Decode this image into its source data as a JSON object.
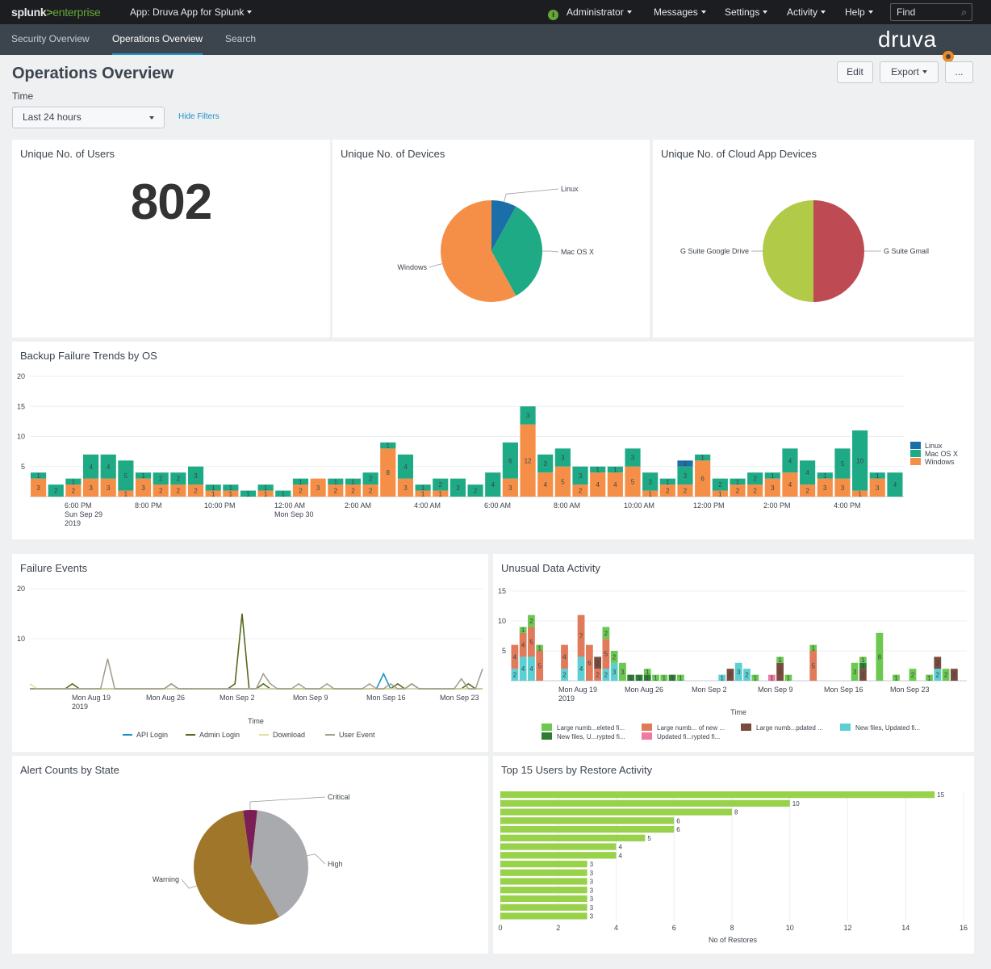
{
  "topbar": {
    "logo_main": "splunk",
    "logo_sep": ">",
    "logo_edition": "enterprise",
    "app_label": "App: Druva App for Splunk",
    "admin_label": "Administrator",
    "menus": [
      "Messages",
      "Settings",
      "Activity",
      "Help"
    ],
    "find_placeholder": "Find"
  },
  "nav": {
    "tabs": [
      "Security Overview",
      "Operations Overview",
      "Search"
    ],
    "active_tab": "Operations Overview",
    "brand": "druva"
  },
  "header": {
    "title": "Operations Overview",
    "edit_label": "Edit",
    "export_label": "Export",
    "more_label": "...",
    "time_label": "Time",
    "time_value": "Last 24 hours",
    "hide_filters": "Hide Filters"
  },
  "colors": {
    "windows": "#f58f47",
    "macos": "#1faa86",
    "linux": "#1b6fa8",
    "gsuite_drive": "#b1ca48",
    "gsuite_gmail": "#be4b54",
    "api_login": "#1e93c6",
    "admin_login": "#546a1c",
    "download": "#e6dea2",
    "user_event": "#a69f8e",
    "alert_warning": "#a0762a",
    "alert_high": "#a9aaad",
    "alert_critical": "#7a1f55",
    "restore_bar": "#98d14a"
  },
  "panels": {
    "users": {
      "title": "Unique No. of Users",
      "value": "802"
    },
    "devices": {
      "title": "Unique No. of Devices"
    },
    "cloud": {
      "title": "Unique No. of Cloud App Devices"
    },
    "backup": {
      "title": "Backup Failure Trends by OS"
    },
    "failures": {
      "title": "Failure Events"
    },
    "unusual": {
      "title": "Unusual Data Activity"
    },
    "alerts": {
      "title": "Alert Counts by State"
    },
    "top15": {
      "title": "Top 15 Users by Restore Activity"
    }
  },
  "chart_data": [
    {
      "id": "devices",
      "type": "pie",
      "labels": [
        "Linux",
        "Mac OS X",
        "Windows"
      ],
      "values": [
        8,
        34,
        58
      ]
    },
    {
      "id": "cloud",
      "type": "pie",
      "labels": [
        "G Suite Gmail",
        "G Suite Google Drive"
      ],
      "values": [
        50,
        50
      ]
    },
    {
      "id": "backup",
      "type": "bar",
      "stacked": true,
      "ylim": [
        0,
        20
      ],
      "yticks": [
        5,
        10,
        15,
        20
      ],
      "xtick_labels": [
        [
          "6:00 PM",
          "Sun Sep 29",
          "2019"
        ],
        [
          "8:00 PM"
        ],
        [
          "10:00 PM"
        ],
        [
          "12:00 AM",
          "Mon Sep 30"
        ],
        [
          "2:00 AM"
        ],
        [
          "4:00 AM"
        ],
        [
          "6:00 AM"
        ],
        [
          "8:00 AM"
        ],
        [
          "10:00 AM"
        ],
        [
          "12:00 PM"
        ],
        [
          "2:00 PM"
        ],
        [
          "4:00 PM"
        ]
      ],
      "legend": [
        "Linux",
        "Mac OS X",
        "Windows"
      ],
      "series": [
        {
          "name": "Windows",
          "values": [
            3,
            0,
            2,
            3,
            3,
            1,
            3,
            2,
            2,
            2,
            1,
            1,
            0,
            1,
            0,
            2,
            3,
            2,
            2,
            2,
            8,
            3,
            1,
            1,
            0,
            0,
            0,
            3,
            12,
            4,
            5,
            2,
            4,
            4,
            5,
            1,
            2,
            2,
            6,
            1,
            2,
            2,
            3,
            4,
            2,
            3,
            3,
            1,
            3,
            0
          ]
        },
        {
          "name": "Mac OS X",
          "values": [
            1,
            2,
            1,
            4,
            4,
            5,
            1,
            2,
            2,
            3,
            1,
            1,
            1,
            1,
            1,
            1,
            0,
            1,
            1,
            2,
            1,
            4,
            1,
            2,
            3,
            2,
            4,
            6,
            3,
            3,
            3,
            3,
            1,
            1,
            3,
            3,
            1,
            3,
            1,
            2,
            1,
            2,
            1,
            4,
            4,
            1,
            5,
            10,
            1,
            4
          ]
        },
        {
          "name": "Linux",
          "values": [
            0,
            0,
            0,
            0,
            0,
            0,
            0,
            0,
            0,
            0,
            0,
            0,
            0,
            0,
            0,
            0,
            0,
            0,
            0,
            0,
            0,
            0,
            0,
            0,
            0,
            0,
            0,
            0,
            0,
            0,
            0,
            0,
            0,
            0,
            0,
            0,
            0,
            1,
            0,
            0,
            0,
            0,
            0,
            0,
            0,
            0,
            0,
            0,
            0,
            0
          ]
        }
      ]
    },
    {
      "id": "failures",
      "type": "line",
      "ylim": [
        0,
        20
      ],
      "yticks": [
        10,
        20
      ],
      "xlabel": "Time",
      "xtick_labels": [
        [
          "Mon Aug 19",
          "2019"
        ],
        [
          "Mon Aug 26"
        ],
        [
          "Mon Sep 2"
        ],
        [
          "Mon Sep 9"
        ],
        [
          "Mon Sep 16"
        ],
        [
          "Mon Sep 23"
        ]
      ],
      "series": [
        {
          "name": "API Login",
          "values": [
            0,
            0,
            0,
            0,
            0,
            0,
            0,
            0,
            0,
            0,
            0,
            0,
            0,
            0,
            0,
            0,
            0,
            0,
            0,
            0,
            0,
            0,
            0,
            0,
            0,
            0,
            0,
            0,
            0,
            0,
            0,
            0,
            0,
            0,
            0,
            0,
            0,
            0,
            0,
            0,
            0,
            0,
            0,
            0,
            0,
            0,
            0,
            0,
            0,
            0,
            3,
            0,
            0,
            0,
            0,
            0,
            0,
            0,
            0,
            0,
            0,
            0,
            0,
            0,
            0
          ]
        },
        {
          "name": "Admin Login",
          "values": [
            0,
            0,
            0,
            0,
            0,
            0,
            1,
            0,
            0,
            0,
            0,
            0,
            0,
            0,
            0,
            0,
            0,
            0,
            0,
            0,
            1,
            0,
            0,
            0,
            0,
            0,
            0,
            0,
            0,
            1,
            15,
            0,
            0,
            1,
            0,
            0,
            0,
            0,
            0,
            0,
            0,
            0,
            0,
            0,
            0,
            0,
            0,
            0,
            0,
            0,
            0,
            0,
            1,
            0,
            1,
            0,
            0,
            0,
            0,
            0,
            0,
            0,
            1,
            0,
            0
          ]
        },
        {
          "name": "Download",
          "values": [
            1,
            0,
            0,
            0,
            0,
            0,
            0,
            0,
            0,
            0,
            0,
            0,
            0,
            0,
            0,
            0,
            0,
            0,
            0,
            0,
            0,
            0,
            0,
            0,
            0,
            0,
            0,
            0,
            0,
            0,
            0,
            0,
            0,
            0,
            0,
            0,
            0,
            0,
            0,
            0,
            0,
            0,
            0,
            0,
            0,
            0,
            0,
            0,
            0,
            0,
            0,
            0,
            0,
            0,
            0,
            0,
            0,
            0,
            0,
            0,
            0,
            0,
            0,
            0,
            0
          ]
        },
        {
          "name": "User Event",
          "values": [
            0,
            0,
            0,
            0,
            0,
            0,
            0,
            0,
            0,
            0,
            0,
            6,
            0,
            0,
            0,
            0,
            0,
            0,
            0,
            0,
            1,
            0,
            0,
            0,
            0,
            0,
            0,
            0,
            0,
            0,
            0,
            0,
            0,
            3,
            1,
            0,
            0,
            0,
            1,
            0,
            0,
            0,
            1,
            0,
            0,
            0,
            0,
            0,
            1,
            0,
            0,
            1,
            0,
            0,
            1,
            0,
            0,
            0,
            0,
            0,
            0,
            2,
            0,
            0,
            4
          ]
        }
      ]
    },
    {
      "id": "unusual",
      "type": "bar",
      "stacked": true,
      "ylim": [
        0,
        15
      ],
      "yticks": [
        5,
        10,
        15
      ],
      "xlabel": "Time",
      "xtick_labels": [
        [
          "Mon Aug 19",
          "2019"
        ],
        [
          "Mon Aug 26"
        ],
        [
          "Mon Sep 2"
        ],
        [
          "Mon Sep 9"
        ],
        [
          "Mon Sep 16"
        ],
        [
          "Mon Sep 23"
        ]
      ],
      "legend": [
        "Large numb...eleted fi...",
        "New files, U...rypted fi...",
        "Large numb... of new ...",
        "Updated fi...rypted fi...",
        "Large numb...pdated ...",
        "New files, Updated fi..."
      ],
      "series": [
        {
          "name": "New files, Updated fi...",
          "values": [
            2,
            4,
            4,
            0,
            0,
            0,
            2,
            0,
            4,
            0,
            0,
            2,
            3,
            0,
            0,
            0,
            0,
            0,
            0,
            0,
            0,
            0,
            0,
            0,
            0,
            1,
            0,
            3,
            2,
            0,
            0,
            0,
            0,
            0,
            0,
            0,
            0,
            0,
            0,
            0,
            0,
            0,
            0,
            0,
            0,
            0,
            0,
            0,
            0,
            0,
            0,
            2,
            0,
            0,
            0
          ]
        },
        {
          "name": "Large numb... of new ...",
          "values": [
            4,
            4,
            5,
            5,
            0,
            0,
            4,
            0,
            7,
            6,
            2,
            5,
            0,
            0,
            0,
            0,
            0,
            0,
            0,
            0,
            0,
            0,
            0,
            0,
            0,
            0,
            0,
            0,
            0,
            0,
            0,
            0,
            0,
            0,
            0,
            0,
            5,
            0,
            0,
            0,
            0,
            0,
            0,
            0,
            0,
            0,
            0,
            0,
            0,
            0,
            0,
            0,
            0,
            0,
            0
          ]
        },
        {
          "name": "Updated fi...rypted fi...",
          "values": [
            0,
            0,
            0,
            0,
            0,
            0,
            0,
            0,
            0,
            0,
            0,
            0,
            0,
            0,
            0,
            0,
            0,
            0,
            0,
            0,
            0,
            0,
            0,
            0,
            0,
            0,
            0,
            0,
            0,
            0,
            0,
            1,
            0,
            0,
            0,
            0,
            0,
            0,
            0,
            0,
            0,
            0,
            0,
            0,
            0,
            0,
            0,
            0,
            0,
            0,
            0,
            0,
            0,
            0,
            0
          ]
        },
        {
          "name": "Large numb...pdated ...",
          "values": [
            0,
            0,
            0,
            0,
            0,
            0,
            0,
            0,
            0,
            0,
            2,
            0,
            0,
            0,
            0,
            0,
            0,
            0,
            0,
            0,
            0,
            0,
            0,
            0,
            0,
            0,
            2,
            0,
            0,
            0,
            0,
            0,
            3,
            0,
            0,
            0,
            0,
            0,
            0,
            0,
            0,
            0,
            2,
            0,
            0,
            0,
            0,
            0,
            0,
            0,
            0,
            2,
            0,
            2,
            0
          ]
        },
        {
          "name": "New files, U...rypted fi...",
          "values": [
            0,
            0,
            0,
            0,
            0,
            0,
            0,
            0,
            0,
            0,
            0,
            0,
            0,
            0,
            1,
            1,
            1,
            0,
            0,
            1,
            0,
            0,
            0,
            0,
            0,
            0,
            0,
            0,
            0,
            0,
            0,
            0,
            0,
            0,
            0,
            0,
            0,
            0,
            0,
            0,
            0,
            0,
            1,
            0,
            0,
            0,
            0,
            0,
            0,
            0,
            0,
            0,
            0,
            0,
            0
          ]
        },
        {
          "name": "Large numb...eleted fi...",
          "values": [
            0,
            1,
            2,
            1,
            0,
            0,
            0,
            0,
            0,
            0,
            0,
            2,
            2,
            3,
            0,
            0,
            1,
            1,
            1,
            0,
            1,
            0,
            0,
            0,
            0,
            0,
            0,
            0,
            0,
            1,
            0,
            0,
            1,
            1,
            0,
            0,
            1,
            0,
            0,
            0,
            0,
            3,
            1,
            0,
            8,
            0,
            1,
            0,
            2,
            0,
            1,
            0,
            2,
            0,
            0
          ]
        }
      ]
    },
    {
      "id": "alerts",
      "type": "pie",
      "labels": [
        "Critical",
        "High",
        "Warning"
      ],
      "values": [
        4,
        40,
        56
      ]
    },
    {
      "id": "top15",
      "type": "bar",
      "orientation": "horizontal",
      "xlim": [
        0,
        16
      ],
      "xticks": [
        0,
        2,
        4,
        6,
        8,
        10,
        12,
        14,
        16
      ],
      "xlabel": "No of Restores",
      "values": [
        15,
        10,
        8,
        6,
        6,
        5,
        4,
        4,
        3,
        3,
        3,
        3,
        3,
        3,
        3
      ]
    }
  ]
}
